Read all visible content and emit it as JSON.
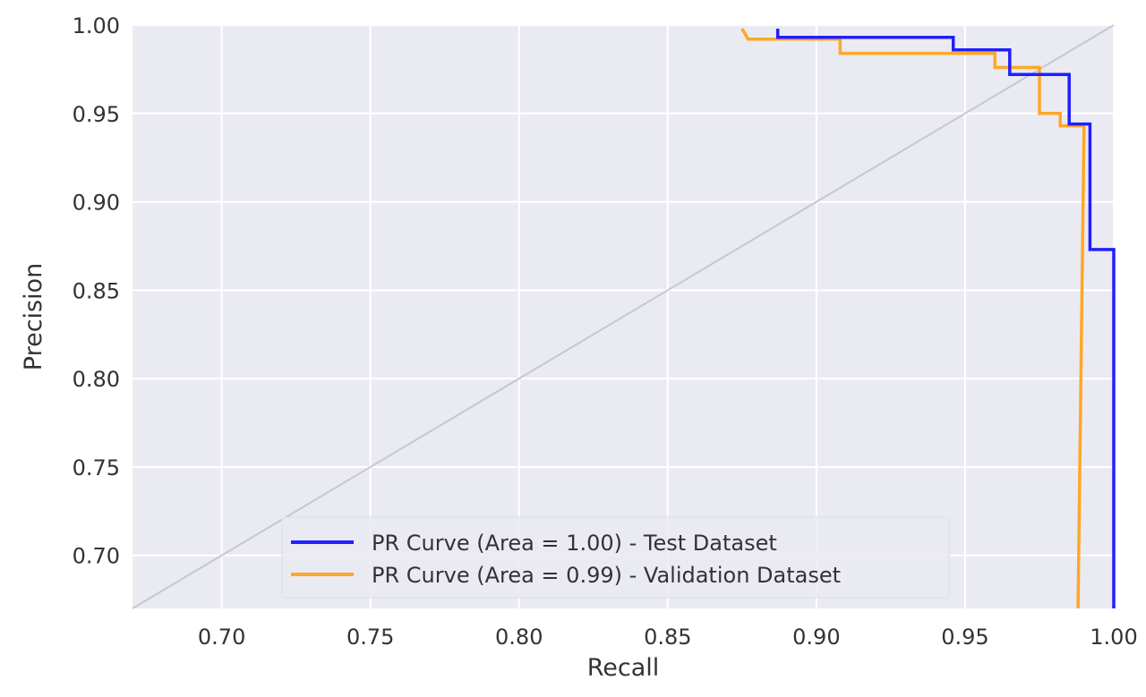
{
  "chart_data": {
    "type": "line",
    "title": "",
    "xlabel": "Recall",
    "ylabel": "Precision",
    "xlim": [
      0.67,
      1.0
    ],
    "ylim": [
      0.67,
      1.0
    ],
    "xticks": [
      "0.70",
      "0.75",
      "0.80",
      "0.85",
      "0.90",
      "0.95",
      "1.00"
    ],
    "yticks": [
      "0.70",
      "0.75",
      "0.80",
      "0.85",
      "0.90",
      "0.95",
      "1.00"
    ],
    "grid": true,
    "legend_position": "lower-center",
    "background": "#eaeaf2",
    "reference_line": {
      "x": [
        0.67,
        1.0
      ],
      "y": [
        0.67,
        1.0
      ],
      "color": "#c7c7cf"
    },
    "series": [
      {
        "name": "PR Curve (Area = 1.00) - Test Dataset",
        "color": "#1f1fff",
        "x": [
          0.887,
          0.887,
          0.946,
          0.946,
          0.965,
          0.965,
          0.985,
          0.985,
          0.992,
          0.992,
          1.0,
          1.0
        ],
        "y": [
          0.998,
          0.993,
          0.993,
          0.986,
          0.986,
          0.972,
          0.972,
          0.944,
          0.944,
          0.873,
          0.873,
          0.67
        ]
      },
      {
        "name": "PR Curve (Area = 0.99) - Validation Dataset",
        "color": "#ffa726",
        "x": [
          0.875,
          0.877,
          0.908,
          0.908,
          0.96,
          0.96,
          0.975,
          0.975,
          0.982,
          0.982,
          0.99,
          0.988
        ],
        "y": [
          0.998,
          0.992,
          0.992,
          0.984,
          0.984,
          0.976,
          0.976,
          0.95,
          0.95,
          0.943,
          0.943,
          0.67
        ]
      }
    ]
  }
}
